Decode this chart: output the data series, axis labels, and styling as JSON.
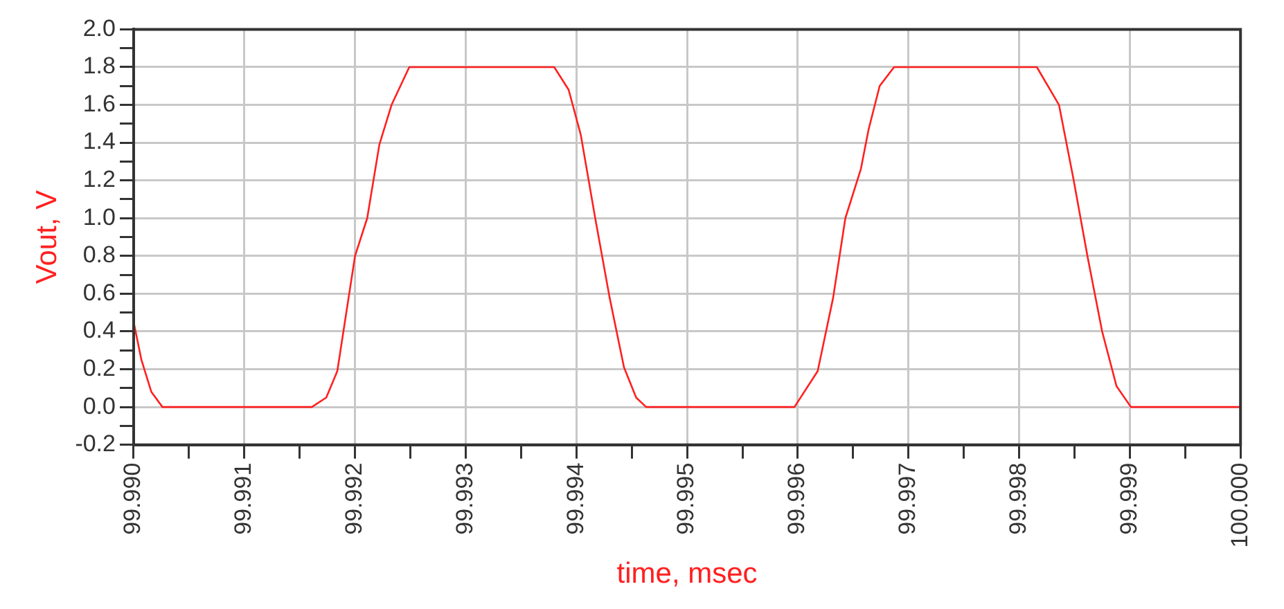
{
  "chart_data": {
    "type": "line",
    "xlabel": "time, msec",
    "ylabel": "Vout, V",
    "series": [
      {
        "color": "#ff2020",
        "x": [
          99.99,
          99.99007,
          99.99016,
          99.99026,
          99.9906,
          99.991,
          99.9914,
          99.99161,
          99.99174,
          99.99184,
          99.992,
          99.99211,
          99.99222,
          99.99233,
          99.99249,
          99.9931,
          99.9938,
          99.99393,
          99.99404,
          99.99417,
          99.9943,
          99.99443,
          99.99454,
          99.99463,
          99.995,
          99.9955,
          99.99597,
          99.99618,
          99.99632,
          99.99643,
          99.99657,
          99.99664,
          99.99674,
          99.99687,
          99.9975,
          99.99816,
          99.99836,
          99.99849,
          99.99862,
          99.99875,
          99.99888,
          99.99901,
          99.9995,
          100.0
        ],
        "values": [
          0.45,
          0.25,
          0.08,
          0,
          0,
          0,
          0,
          0,
          0.05,
          0.19,
          0.8,
          1.0,
          1.39,
          1.6,
          1.8,
          1.8,
          1.8,
          1.68,
          1.44,
          1.0,
          0.58,
          0.21,
          0.05,
          0,
          0,
          0,
          0,
          0.19,
          0.58,
          1.0,
          1.26,
          1.47,
          1.7,
          1.8,
          1.8,
          1.8,
          1.6,
          1.21,
          0.79,
          0.4,
          0.11,
          0,
          0,
          0
        ]
      }
    ],
    "xlim": [
      99.99,
      100.0
    ],
    "xticks": [
      {
        "value": 99.99,
        "label": "99.990"
      },
      {
        "value": 99.9905,
        "label": null
      },
      {
        "value": 99.991,
        "label": "99.991"
      },
      {
        "value": 99.9915,
        "label": null
      },
      {
        "value": 99.992,
        "label": "99.992"
      },
      {
        "value": 99.9925,
        "label": null
      },
      {
        "value": 99.993,
        "label": "99.993"
      },
      {
        "value": 99.9935,
        "label": null
      },
      {
        "value": 99.994,
        "label": "99.994"
      },
      {
        "value": 99.9945,
        "label": null
      },
      {
        "value": 99.995,
        "label": "99.995"
      },
      {
        "value": 99.9955,
        "label": null
      },
      {
        "value": 99.996,
        "label": "99.996"
      },
      {
        "value": 99.9965,
        "label": null
      },
      {
        "value": 99.997,
        "label": "99.997"
      },
      {
        "value": 99.9975,
        "label": null
      },
      {
        "value": 99.998,
        "label": "99.998"
      },
      {
        "value": 99.9985,
        "label": null
      },
      {
        "value": 99.999,
        "label": "99.999"
      },
      {
        "value": 99.9995,
        "label": null
      },
      {
        "value": 100.0,
        "label": "100.000"
      }
    ],
    "ylim": [
      -0.2,
      2.0
    ],
    "yticks": [
      {
        "value": -0.2,
        "label": "-0.2"
      },
      {
        "value": -0.1,
        "label": null
      },
      {
        "value": 0,
        "label": "0.0"
      },
      {
        "value": 0.1,
        "label": null
      },
      {
        "value": 0.2,
        "label": "0.2"
      },
      {
        "value": 0.3,
        "label": null
      },
      {
        "value": 0.4,
        "label": "0.4"
      },
      {
        "value": 0.5,
        "label": null
      },
      {
        "value": 0.6,
        "label": "0.6"
      },
      {
        "value": 0.7,
        "label": null
      },
      {
        "value": 0.8,
        "label": "0.8"
      },
      {
        "value": 0.9,
        "label": null
      },
      {
        "value": 1.0,
        "label": "1.0"
      },
      {
        "value": 1.1,
        "label": null
      },
      {
        "value": 1.2,
        "label": "1.2"
      },
      {
        "value": 1.3,
        "label": null
      },
      {
        "value": 1.4,
        "label": "1.4"
      },
      {
        "value": 1.5,
        "label": null
      },
      {
        "value": 1.6,
        "label": "1.6"
      },
      {
        "value": 1.7,
        "label": null
      },
      {
        "value": 1.8,
        "label": "1.8"
      },
      {
        "value": 1.9,
        "label": null
      },
      {
        "value": 2.0,
        "label": "2.0"
      }
    ],
    "grid": true,
    "legend": false,
    "marker": "none",
    "line_style": "solid"
  }
}
